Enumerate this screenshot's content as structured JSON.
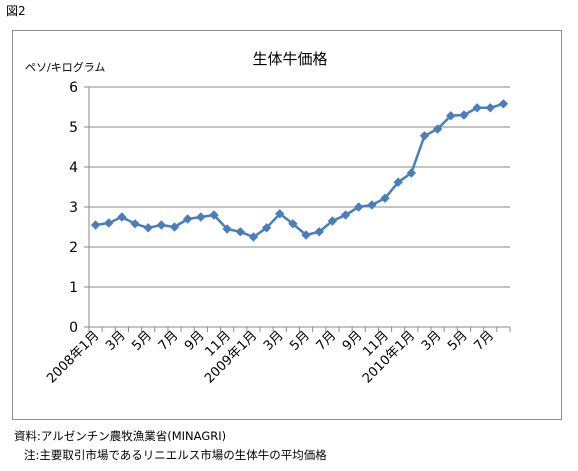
{
  "figure_label": "図2",
  "source_note": "資料:アルゼンチン農牧漁業省(MINAGRI)",
  "footnote": "注:主要取引市場であるリニエルス市場の生体牛の平均価格",
  "chart_data": {
    "type": "line",
    "title": "生体牛価格",
    "ylabel": "ペソ/キログラム",
    "xlabel": "",
    "ylim": [
      0,
      6
    ],
    "yticks": [
      0,
      1,
      2,
      3,
      4,
      5,
      6
    ],
    "grid": true,
    "legend": "none",
    "x": [
      "2008年1月",
      "2008年2月",
      "2008年3月",
      "2008年4月",
      "2008年5月",
      "2008年6月",
      "2008年7月",
      "2008年8月",
      "2008年9月",
      "2008年10月",
      "2008年11月",
      "2008年12月",
      "2009年1月",
      "2009年2月",
      "2009年3月",
      "2009年4月",
      "2009年5月",
      "2009年6月",
      "2009年7月",
      "2009年8月",
      "2009年9月",
      "2009年10月",
      "2009年11月",
      "2009年12月",
      "2010年1月",
      "2010年2月",
      "2010年3月",
      "2010年4月",
      "2010年5月",
      "2010年6月",
      "2010年7月",
      "2010年8月"
    ],
    "tick_labels": [
      "2008年1月",
      "",
      "3月",
      "",
      "5月",
      "",
      "7月",
      "",
      "9月",
      "",
      "11月",
      "",
      "2009年1月",
      "",
      "3月",
      "",
      "5月",
      "",
      "7月",
      "",
      "9月",
      "",
      "11月",
      "",
      "2010年1月",
      "",
      "3月",
      "",
      "5月",
      "",
      "7月",
      ""
    ],
    "series": [
      {
        "values": [
          2.55,
          2.6,
          2.75,
          2.58,
          2.48,
          2.55,
          2.5,
          2.7,
          2.75,
          2.8,
          2.45,
          2.38,
          2.25,
          2.48,
          2.83,
          2.58,
          2.3,
          2.38,
          2.65,
          2.8,
          3.0,
          3.05,
          3.22,
          3.62,
          3.85,
          4.78,
          4.95,
          5.28,
          5.3,
          5.48,
          5.48,
          5.58
        ],
        "color": "#4a7ebb"
      }
    ]
  }
}
